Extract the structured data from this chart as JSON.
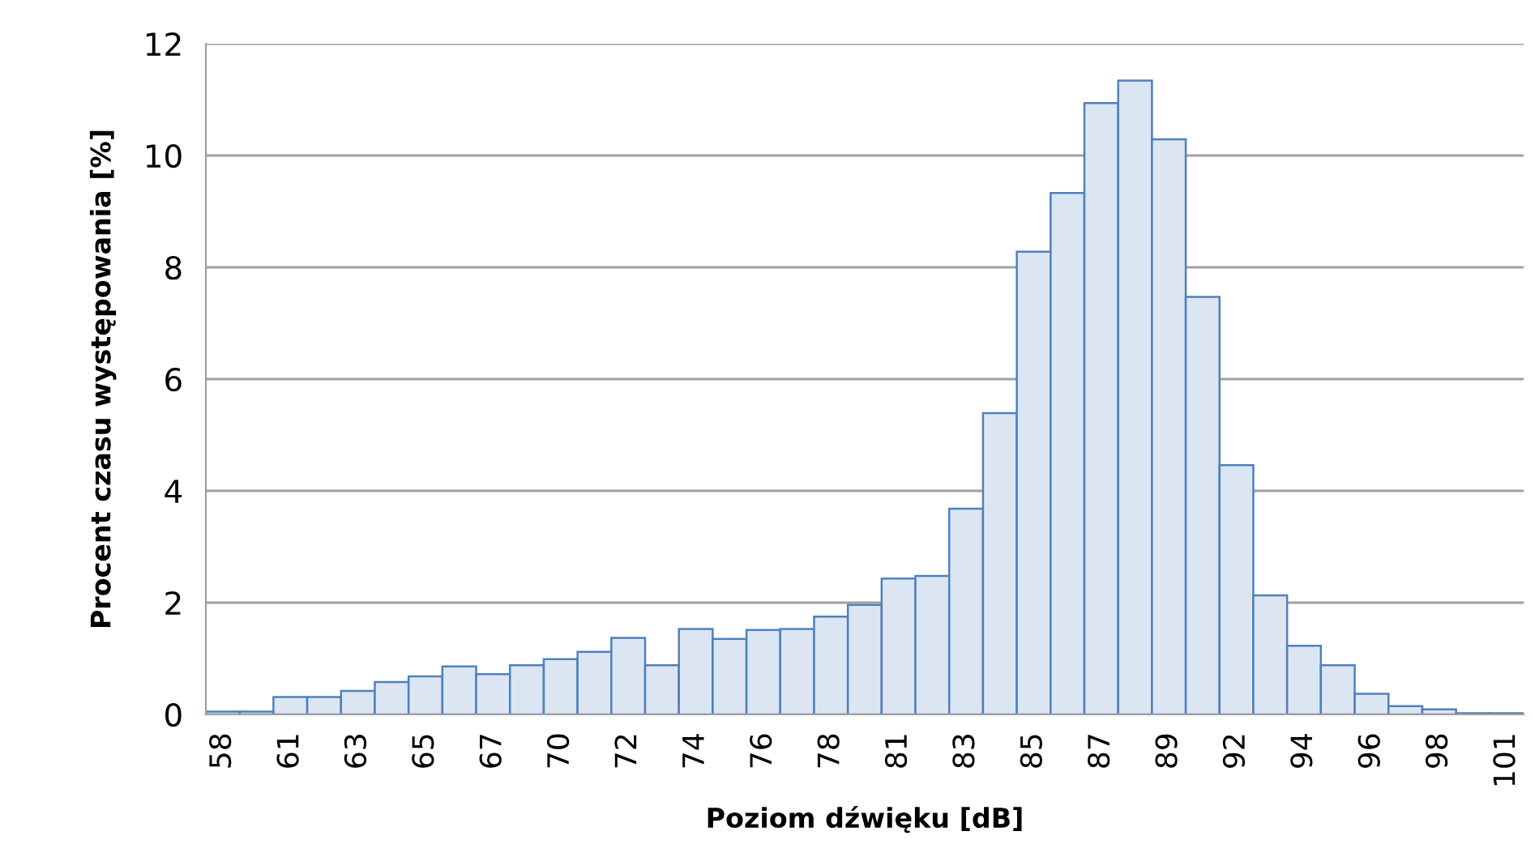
{
  "chart_data": {
    "type": "bar",
    "xlabel": "Poziom dźwięku [dB]",
    "ylabel": "Procent czasu występowania [%]",
    "categories": [
      "58",
      null,
      "61",
      null,
      "63",
      null,
      "65",
      null,
      "67",
      null,
      "70",
      null,
      "72",
      null,
      "74",
      null,
      "76",
      null,
      "78",
      null,
      "81",
      null,
      "83",
      null,
      "85",
      null,
      "87",
      null,
      "89",
      null,
      "92",
      null,
      "94",
      null,
      "96",
      null,
      "98",
      null,
      "101"
    ],
    "series": [
      {
        "color": "#dce6f2",
        "values": [
          0.05,
          0.05,
          0.31,
          0.31,
          0.42,
          0.58,
          0.68,
          0.86,
          0.72,
          0.88,
          0.99,
          1.12,
          1.37,
          0.88,
          1.53,
          1.35,
          1.51,
          1.53,
          1.75,
          1.96,
          2.43,
          2.48,
          3.68,
          5.39,
          8.28,
          9.33,
          10.94,
          11.34,
          10.29,
          7.47,
          4.46,
          2.13,
          1.23,
          0.88,
          0.37,
          0.15,
          0.09,
          0.02,
          0.02
        ]
      }
    ],
    "ylim": [
      0,
      12
    ],
    "yticks": [
      0,
      2,
      4,
      6,
      8,
      10,
      12
    ],
    "grid": "y",
    "legend": false
  }
}
